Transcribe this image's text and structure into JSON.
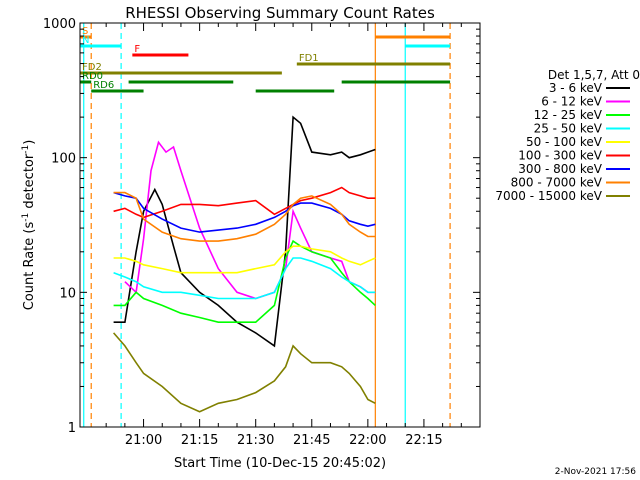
{
  "chart_data": {
    "type": "line",
    "title": "RHESSI Observing Summary Count Rates",
    "xlabel": "Start Time (10-Dec-15 20:45:02)",
    "ylabel_main": "Count Rate (s",
    "ylabel_sup1": "-1",
    "ylabel_mid": " detector",
    "ylabel_sup2": "-1",
    "ylabel_end": ")",
    "footer": "2-Nov-2021 17:56",
    "y_scale": "log",
    "ylim": [
      1,
      1000
    ],
    "y_ticks": [
      {
        "value": 1,
        "label": "1"
      },
      {
        "value": 10,
        "label": "10"
      },
      {
        "value": 100,
        "label": "100"
      },
      {
        "value": 1000,
        "label": "1000"
      }
    ],
    "xlim": [
      "20:43",
      "22:30"
    ],
    "x_ticks": [
      {
        "value": "21:00",
        "label": "21:00"
      },
      {
        "value": "21:15",
        "label": "21:15"
      },
      {
        "value": "21:30",
        "label": "21:30"
      },
      {
        "value": "21:45",
        "label": "21:45"
      },
      {
        "value": "22:00",
        "label": "22:00"
      },
      {
        "value": "22:15",
        "label": "22:15"
      }
    ],
    "legend_title": "Det 1,5,7, Att 0",
    "legend_position": "right",
    "series": [
      {
        "name": "3 - 6 keV",
        "color": "#000000",
        "x": [
          "20:52",
          "20:55",
          "20:58",
          "21:00",
          "21:03",
          "21:05",
          "21:08",
          "21:10",
          "21:15",
          "21:20",
          "21:25",
          "21:30",
          "21:35",
          "21:38",
          "21:40",
          "21:42",
          "21:45",
          "21:50",
          "21:53",
          "21:55",
          "21:58",
          "22:00",
          "22:02"
        ],
        "y": [
          6,
          6,
          20,
          40,
          58,
          45,
          22,
          14,
          10,
          8,
          6,
          5,
          4,
          20,
          200,
          180,
          110,
          105,
          110,
          100,
          105,
          110,
          115
        ]
      },
      {
        "name": "6 - 12 keV",
        "color": "#ff00ff",
        "x": [
          "20:55",
          "20:58",
          "21:00",
          "21:02",
          "21:04",
          "21:06",
          "21:08",
          "21:10",
          "21:15",
          "21:20",
          "21:25",
          "21:30",
          "21:35",
          "21:38",
          "21:40",
          "21:42",
          "21:45",
          "21:50",
          "21:53",
          "21:55",
          "21:58",
          "22:00",
          "22:02"
        ],
        "y": [
          12,
          10,
          25,
          80,
          130,
          110,
          120,
          80,
          30,
          15,
          10,
          9,
          10,
          15,
          40,
          30,
          20,
          18,
          17,
          12,
          11,
          10,
          10
        ]
      },
      {
        "name": "12 - 25 keV",
        "color": "#00ff00",
        "x": [
          "20:52",
          "20:55",
          "20:58",
          "21:00",
          "21:05",
          "21:10",
          "21:15",
          "21:20",
          "21:25",
          "21:30",
          "21:35",
          "21:38",
          "21:40",
          "21:42",
          "21:45",
          "21:50",
          "21:53",
          "21:55",
          "21:58",
          "22:00",
          "22:02"
        ],
        "y": [
          8,
          8,
          10,
          9,
          8,
          7,
          6.5,
          6,
          6,
          6,
          8,
          18,
          24,
          22,
          20,
          18,
          14,
          12,
          10,
          9,
          8
        ]
      },
      {
        "name": "25 - 50 keV",
        "color": "#00ffff",
        "x": [
          "20:52",
          "20:55",
          "20:58",
          "21:00",
          "21:05",
          "21:10",
          "21:15",
          "21:20",
          "21:25",
          "21:30",
          "21:35",
          "21:38",
          "21:40",
          "21:42",
          "21:45",
          "21:50",
          "21:53",
          "21:55",
          "21:58",
          "22:00",
          "22:02"
        ],
        "y": [
          14,
          13,
          12,
          11,
          10,
          10,
          9.5,
          9,
          9,
          9,
          10,
          15,
          18,
          18,
          17,
          15,
          13,
          12,
          11,
          10,
          10
        ]
      },
      {
        "name": "50 - 100 keV",
        "color": "#ffff00",
        "x": [
          "20:52",
          "20:55",
          "20:58",
          "21:00",
          "21:05",
          "21:10",
          "21:15",
          "21:20",
          "21:25",
          "21:30",
          "21:35",
          "21:38",
          "21:40",
          "21:42",
          "21:45",
          "21:50",
          "21:53",
          "21:55",
          "21:58",
          "22:00",
          "22:02"
        ],
        "y": [
          18,
          18,
          17,
          16,
          15,
          14,
          14,
          14,
          14,
          15,
          16,
          20,
          22,
          22,
          21,
          20,
          18,
          17,
          16,
          17,
          18
        ]
      },
      {
        "name": "100 - 300 keV",
        "color": "#ff0000",
        "x": [
          "20:52",
          "20:55",
          "20:58",
          "21:00",
          "21:05",
          "21:10",
          "21:15",
          "21:20",
          "21:25",
          "21:30",
          "21:35",
          "21:38",
          "21:40",
          "21:42",
          "21:45",
          "21:50",
          "21:53",
          "21:55",
          "21:58",
          "22:00",
          "22:02"
        ],
        "y": [
          40,
          42,
          38,
          36,
          40,
          45,
          45,
          44,
          46,
          48,
          38,
          42,
          45,
          48,
          50,
          55,
          60,
          55,
          52,
          50,
          50
        ]
      },
      {
        "name": "300 - 800 keV",
        "color": "#0000ff",
        "x": [
          "20:52",
          "20:55",
          "20:58",
          "21:00",
          "21:05",
          "21:10",
          "21:15",
          "21:20",
          "21:25",
          "21:30",
          "21:35",
          "21:38",
          "21:40",
          "21:42",
          "21:45",
          "21:50",
          "21:53",
          "21:55",
          "21:58",
          "22:00",
          "22:02"
        ],
        "y": [
          55,
          52,
          50,
          42,
          35,
          30,
          28,
          29,
          30,
          32,
          36,
          40,
          44,
          46,
          46,
          42,
          38,
          34,
          32,
          31,
          32
        ]
      },
      {
        "name": "800 - 7000 keV",
        "color": "#ff8000",
        "x": [
          "20:52",
          "20:55",
          "20:58",
          "21:00",
          "21:05",
          "21:10",
          "21:15",
          "21:20",
          "21:25",
          "21:30",
          "21:35",
          "21:38",
          "21:40",
          "21:42",
          "21:45",
          "21:50",
          "21:53",
          "21:55",
          "21:58",
          "22:00",
          "22:02"
        ],
        "y": [
          55,
          55,
          50,
          35,
          28,
          25,
          24,
          24,
          25,
          27,
          32,
          38,
          45,
          50,
          52,
          45,
          38,
          32,
          28,
          26,
          26
        ]
      },
      {
        "name": "7000 - 15000 keV",
        "color": "#808000",
        "x": [
          "20:52",
          "20:55",
          "20:58",
          "21:00",
          "21:05",
          "21:10",
          "21:15",
          "21:20",
          "21:25",
          "21:30",
          "21:35",
          "21:38",
          "21:40",
          "21:42",
          "21:45",
          "21:50",
          "21:53",
          "21:55",
          "21:58",
          "22:00",
          "22:02"
        ],
        "y": [
          5,
          4,
          3,
          2.5,
          2,
          1.5,
          1.3,
          1.5,
          1.6,
          1.8,
          2.2,
          2.8,
          4,
          3.5,
          3,
          3,
          2.8,
          2.5,
          2,
          1.6,
          1.5
        ]
      }
    ],
    "vertical_markers": [
      {
        "x": "20:44",
        "color": "#00ffff",
        "style": "solid"
      },
      {
        "x": "20:46",
        "color": "#ff8000",
        "style": "dashed"
      },
      {
        "x": "20:54",
        "color": "#00ffff",
        "style": "dashed"
      },
      {
        "x": "22:02",
        "color": "#ff8000",
        "style": "solid"
      },
      {
        "x": "22:10",
        "color": "#00ffff",
        "style": "solid"
      },
      {
        "x": "22:22",
        "color": "#ff8000",
        "style": "dashed"
      }
    ],
    "flag_bars": [
      {
        "label": "S",
        "color": "#ff8000",
        "row": 1,
        "segments": [
          [
            "20:43",
            "20:46"
          ],
          [
            "22:02",
            "22:22"
          ]
        ]
      },
      {
        "label": "N",
        "color": "#00ffff",
        "row": 2,
        "segments": [
          [
            "20:43",
            "20:54"
          ],
          [
            "22:10",
            "22:22"
          ]
        ]
      },
      {
        "label": "F",
        "color": "#ff0000",
        "row": 3,
        "segments": [
          [
            "20:57",
            "21:12"
          ]
        ]
      },
      {
        "label": "FD1",
        "color": "#808000",
        "row": 4,
        "segments": [
          [
            "21:41",
            "22:22"
          ]
        ]
      },
      {
        "label": "FD2",
        "color": "#808000",
        "row": 5,
        "segments": [
          [
            "20:43",
            "21:37"
          ]
        ]
      },
      {
        "label": "RD0",
        "color": "#008000",
        "row": 6,
        "segments": [
          [
            "20:43",
            "20:46"
          ],
          [
            "20:56",
            "21:24"
          ],
          [
            "21:53",
            "22:22"
          ]
        ]
      },
      {
        "label": "RD6",
        "color": "#008000",
        "row": 7,
        "segments": [
          [
            "20:46",
            "21:00"
          ],
          [
            "21:30",
            "21:51"
          ]
        ]
      }
    ]
  }
}
